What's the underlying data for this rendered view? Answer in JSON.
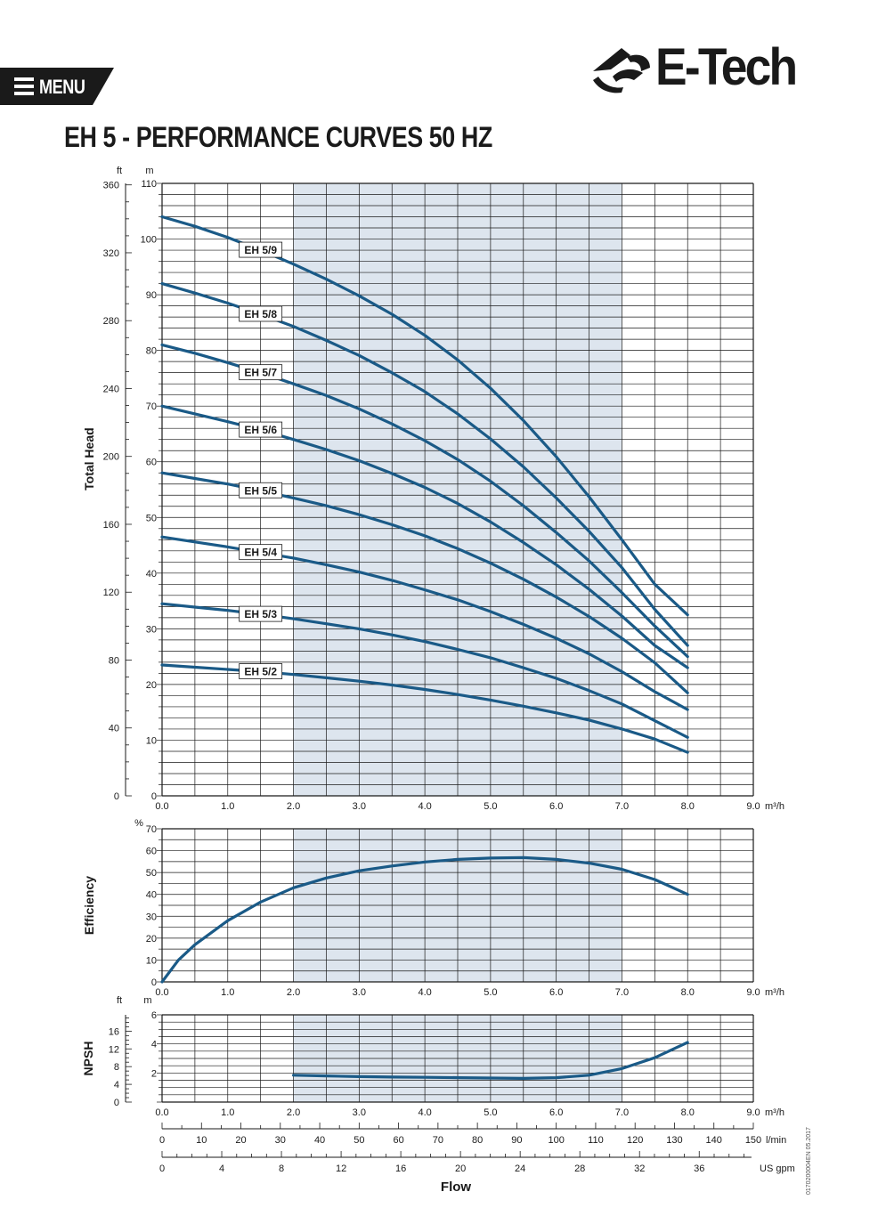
{
  "header": {
    "menu_label": "MENU",
    "logo_text": "E-Tech",
    "title": "EH 5 - PERFORMANCE CURVES 50 HZ"
  },
  "footer": {
    "doc_code": "0170200004EN 05.2017"
  },
  "colors": {
    "curve": "#1a5a87",
    "shade": "#dde5ee",
    "grid": "#1a1a1a",
    "text": "#1a1a1a"
  },
  "chart_data": [
    {
      "id": "head",
      "type": "line",
      "ylabel": "Total Head",
      "unit_left": "ft",
      "unit_right": "m",
      "xunit": "m³/h",
      "xlim": [
        0,
        9
      ],
      "ylim_m": [
        0,
        110
      ],
      "ylim_ft": [
        0,
        360
      ],
      "x_ticks": [
        "0.0",
        "1.0",
        "2.0",
        "3.0",
        "4.0",
        "5.0",
        "6.0",
        "7.0",
        "8.0",
        "9.0"
      ],
      "y_ticks_m": [
        "0",
        "10",
        "20",
        "30",
        "40",
        "50",
        "60",
        "70",
        "80",
        "90",
        "100",
        "110"
      ],
      "y_ticks_ft": [
        "0",
        "40",
        "80",
        "120",
        "160",
        "200",
        "240",
        "280",
        "320",
        "360"
      ],
      "shaded_range": [
        2,
        7
      ],
      "x": [
        0,
        0.5,
        1,
        1.5,
        2,
        2.5,
        3,
        3.5,
        4,
        4.5,
        5,
        5.5,
        6,
        6.5,
        7,
        7.5,
        8
      ],
      "series": [
        {
          "name": "EH 5/9",
          "values": [
            104,
            102.3,
            100.3,
            98,
            95.5,
            92.8,
            89.8,
            86.5,
            82.7,
            78.3,
            73.2,
            67.4,
            60.9,
            53.7,
            46,
            38,
            32.5
          ]
        },
        {
          "name": "EH 5/8",
          "values": [
            92,
            90.3,
            88.5,
            86.5,
            84.3,
            81.8,
            79.1,
            76,
            72.6,
            68.6,
            64.1,
            59.1,
            53.5,
            47.5,
            41,
            33.5,
            27
          ]
        },
        {
          "name": "EH 5/7",
          "values": [
            81,
            79.5,
            77.8,
            76,
            74,
            71.9,
            69.5,
            66.8,
            63.8,
            60.4,
            56.5,
            52.1,
            47.3,
            42.2,
            36.5,
            30.5,
            25
          ]
        },
        {
          "name": "EH 5/6",
          "values": [
            70,
            68.6,
            67.2,
            65.7,
            64,
            62.2,
            60.2,
            57.9,
            55.4,
            52.5,
            49.2,
            45.5,
            41.5,
            37.1,
            32.3,
            27,
            23
          ]
        },
        {
          "name": "EH 5/5",
          "values": [
            58,
            57,
            56,
            54.8,
            53.5,
            52.1,
            50.5,
            48.7,
            46.7,
            44.4,
            41.8,
            38.9,
            35.7,
            32.2,
            28.3,
            23.9,
            18.5
          ]
        },
        {
          "name": "EH 5/4",
          "values": [
            46.5,
            45.6,
            44.7,
            43.7,
            42.7,
            41.5,
            40.2,
            38.7,
            37,
            35.2,
            33.1,
            30.8,
            28.3,
            25.5,
            22.3,
            18.7,
            15.5
          ]
        },
        {
          "name": "EH 5/3",
          "values": [
            34.5,
            33.9,
            33.3,
            32.6,
            31.8,
            30.9,
            30,
            28.9,
            27.7,
            26.3,
            24.8,
            23,
            21.1,
            18.9,
            16.5,
            13.5,
            10.5
          ]
        },
        {
          "name": "EH 5/2",
          "values": [
            23.5,
            23.1,
            22.7,
            22.3,
            21.8,
            21.2,
            20.6,
            19.9,
            19.1,
            18.2,
            17.2,
            16.1,
            14.9,
            13.6,
            12,
            10.2,
            7.8
          ]
        }
      ]
    },
    {
      "id": "efficiency",
      "type": "line",
      "ylabel": "Efficiency",
      "unit_left": "%",
      "xunit": "m³/h",
      "xlim": [
        0,
        9
      ],
      "ylim": [
        0,
        70
      ],
      "x_ticks": [
        "0.0",
        "1.0",
        "2.0",
        "3.0",
        "4.0",
        "5.0",
        "6.0",
        "7.0",
        "8.0",
        "9.0"
      ],
      "y_ticks": [
        "0",
        "10",
        "20",
        "30",
        "40",
        "50",
        "60",
        "70"
      ],
      "shaded_range": [
        2,
        7
      ],
      "x": [
        0,
        0.25,
        0.5,
        1,
        1.5,
        2,
        2.5,
        3,
        3.5,
        4,
        4.5,
        5,
        5.5,
        6,
        6.5,
        7,
        7.5,
        8
      ],
      "series": [
        {
          "name": "Efficiency",
          "values": [
            0,
            10,
            17,
            28,
            36.5,
            43,
            47.5,
            50.8,
            53,
            54.8,
            56,
            56.6,
            56.8,
            56,
            54.3,
            51.5,
            46.8,
            40
          ]
        }
      ]
    },
    {
      "id": "npsh",
      "type": "line",
      "ylabel": "NPSH",
      "unit_left": "ft",
      "unit_right": "m",
      "xunit": "m³/h",
      "xlim": [
        0,
        9
      ],
      "ylim_m": [
        0,
        6
      ],
      "y_ticks_m": [
        "2",
        "4",
        "6"
      ],
      "y_ticks_ft": [
        "0",
        "4",
        "8",
        "12",
        "16"
      ],
      "x_ticks": [
        "0.0",
        "1.0",
        "2.0",
        "3.0",
        "4.0",
        "5.0",
        "6.0",
        "7.0",
        "8.0",
        "9.0"
      ],
      "shaded_range": [
        2,
        7
      ],
      "x": [
        2,
        2.5,
        3,
        3.5,
        4,
        4.5,
        5,
        5.5,
        6,
        6.5,
        7,
        7.5,
        8
      ],
      "series": [
        {
          "name": "NPSH",
          "values": [
            1.85,
            1.8,
            1.75,
            1.72,
            1.7,
            1.68,
            1.65,
            1.63,
            1.68,
            1.85,
            2.3,
            3.05,
            4.1
          ]
        }
      ]
    },
    {
      "id": "flow_axes",
      "type": "axis",
      "xlabel": "Flow",
      "lmin_unit": "l/min",
      "lmin_ticks": [
        "0",
        "10",
        "20",
        "30",
        "40",
        "50",
        "60",
        "70",
        "80",
        "90",
        "100",
        "110",
        "120",
        "130",
        "140",
        "150"
      ],
      "gpm_unit": "US gpm",
      "gpm_ticks": [
        "0",
        "4",
        "8",
        "12",
        "16",
        "20",
        "24",
        "28",
        "32",
        "36"
      ]
    }
  ]
}
